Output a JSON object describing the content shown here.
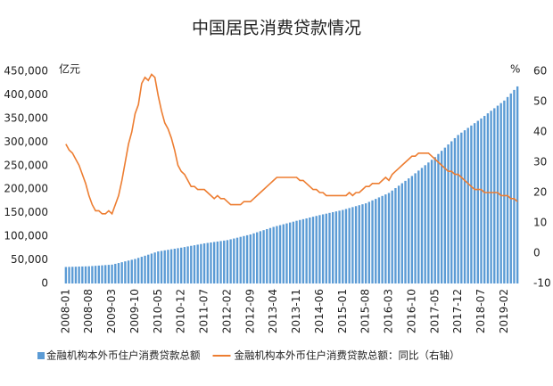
{
  "chart_data": {
    "type": "bar-line",
    "title": "中国居民消费贷款情况",
    "y_unit": "亿元",
    "y2_unit": "%",
    "categories": [
      "2008-01",
      null,
      null,
      null,
      null,
      null,
      null,
      "2008-08",
      null,
      null,
      null,
      null,
      null,
      null,
      "2009-03",
      null,
      null,
      null,
      null,
      null,
      null,
      "2009-10",
      null,
      null,
      null,
      null,
      null,
      null,
      "2010-05",
      null,
      null,
      null,
      null,
      null,
      null,
      "2010-12",
      null,
      null,
      null,
      null,
      null,
      null,
      "2011-07",
      null,
      null,
      null,
      null,
      null,
      null,
      "2012-02",
      null,
      null,
      null,
      null,
      null,
      null,
      "2012-09",
      null,
      null,
      null,
      null,
      null,
      null,
      "2013-04",
      null,
      null,
      null,
      null,
      null,
      null,
      "2013-11",
      null,
      null,
      null,
      null,
      null,
      null,
      "2014-06",
      null,
      null,
      null,
      null,
      null,
      null,
      "2015-01",
      null,
      null,
      null,
      null,
      null,
      null,
      "2015-08",
      null,
      null,
      null,
      null,
      null,
      null,
      "2016-03",
      null,
      null,
      null,
      null,
      null,
      null,
      "2016-10",
      null,
      null,
      null,
      null,
      null,
      null,
      "2017-05",
      null,
      null,
      null,
      null,
      null,
      null,
      "2017-12",
      null,
      null,
      null,
      null,
      null,
      null,
      "2018-07",
      null,
      null,
      null,
      null,
      null,
      null,
      "2019-02",
      null,
      null,
      null,
      null
    ],
    "series": [
      {
        "name": "金融机构本外币住户消费贷款总额",
        "kind": "bar",
        "color": "#5b9bd5",
        "values": [
          35000,
          35200,
          35400,
          35600,
          35900,
          36100,
          36300,
          36500,
          37000,
          37500,
          38000,
          38500,
          39000,
          39500,
          40000,
          41700,
          43400,
          45100,
          46900,
          48600,
          50300,
          52000,
          54300,
          56600,
          58900,
          61100,
          63400,
          65700,
          68000,
          69100,
          70300,
          71400,
          72600,
          73700,
          74900,
          76000,
          77300,
          78600,
          79900,
          81100,
          82400,
          83700,
          85000,
          86000,
          87000,
          88000,
          89000,
          90000,
          91000,
          92000,
          93700,
          95400,
          97100,
          98900,
          100600,
          102300,
          104000,
          106300,
          108600,
          110900,
          113100,
          115400,
          117700,
          120000,
          121900,
          123700,
          125600,
          127400,
          129300,
          131100,
          133000,
          134700,
          136400,
          138100,
          139900,
          141600,
          143300,
          145000,
          146600,
          148100,
          149700,
          151300,
          152900,
          154400,
          156000,
          158000,
          160000,
          162000,
          164000,
          166000,
          168000,
          170000,
          173100,
          176300,
          179400,
          182600,
          185700,
          188900,
          192000,
          197100,
          202300,
          207400,
          212600,
          217700,
          222900,
          228000,
          233700,
          239400,
          245100,
          250900,
          256600,
          262300,
          268000,
          274700,
          281400,
          288100,
          294900,
          301600,
          308300,
          315000,
          320000,
          325000,
          330000,
          335000,
          340000,
          345000,
          350000,
          355400,
          360900,
          366300,
          371700,
          377100,
          382600,
          388000,
          395500,
          403000,
          410500,
          418000
        ]
      },
      {
        "name": "金融机构本外币住户消费贷款总额：同比（右轴）",
        "kind": "line",
        "axis": "y2",
        "color": "#ed7d31",
        "values": [
          36,
          34,
          33,
          31,
          29,
          26,
          23,
          19,
          16,
          14,
          14,
          13,
          13,
          14,
          13,
          16,
          19,
          24,
          30,
          36,
          40,
          46,
          49,
          56,
          58,
          57,
          59,
          58,
          52,
          47,
          43,
          41,
          38,
          34,
          29,
          27,
          26,
          24,
          22,
          22,
          21,
          21,
          21,
          20,
          19,
          18,
          19,
          18,
          18,
          17,
          16,
          16,
          16,
          16,
          17,
          17,
          17,
          18,
          19,
          20,
          21,
          22,
          23,
          24,
          25,
          25,
          25,
          25,
          25,
          25,
          25,
          24,
          24,
          23,
          22,
          21,
          21,
          20,
          20,
          19,
          19,
          19,
          19,
          19,
          19,
          19,
          20,
          19,
          20,
          20,
          21,
          22,
          22,
          23,
          23,
          23,
          24,
          25,
          24,
          26,
          27,
          28,
          29,
          30,
          31,
          32,
          32,
          33,
          33,
          33,
          33,
          32,
          31,
          30,
          29,
          28,
          27,
          27,
          26,
          26,
          25,
          24,
          23,
          22,
          21,
          21,
          21,
          20,
          20,
          20,
          20,
          20,
          19,
          19,
          19,
          18,
          18,
          17
        ]
      }
    ],
    "ylim": [
      0,
      450000
    ],
    "yticks": [
      0,
      {
        "value": 50000,
        "label": "50,000"
      },
      {
        "value": 100000,
        "label": "100,000"
      },
      {
        "value": 150000,
        "label": "150,000"
      },
      {
        "value": 200000,
        "label": "200,000"
      },
      {
        "value": 250000,
        "label": "250,000"
      },
      {
        "value": 300000,
        "label": "300,000"
      },
      {
        "value": 350000,
        "label": "350,000"
      },
      {
        "value": 400000,
        "label": "400,000"
      },
      {
        "value": 450000,
        "label": "450,000"
      }
    ],
    "y2lim": [
      -10,
      60
    ],
    "y2ticks": [
      -10,
      0,
      10,
      20,
      30,
      40,
      50,
      60
    ],
    "grid": false,
    "legend": "bottom"
  }
}
